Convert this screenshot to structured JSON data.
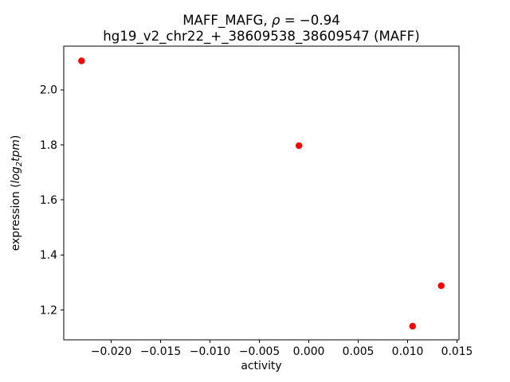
{
  "figure": {
    "background": "#ffffff"
  },
  "chart_data": {
    "type": "scatter",
    "title": {
      "line1_prefix": "MAFF_MAFG, ",
      "line1_rho": "ρ",
      "line1_suffix": " = −0.94",
      "line2": "hg19_v2_chr22_+_38609538_38609547 (MAFF)"
    },
    "xlabel": "activity",
    "ylabel": {
      "prefix": "expression (",
      "italic_word": "log",
      "subscript": "2",
      "italic_word2": "tpm",
      "suffix": ")"
    },
    "series": [
      {
        "name": "expression-vs-activity",
        "marker": "circle",
        "color": "#ff0000",
        "points": [
          {
            "x": -0.023,
            "y": 2.105
          },
          {
            "x": -0.001,
            "y": 1.797
          },
          {
            "x": 0.0105,
            "y": 1.141
          },
          {
            "x": 0.0134,
            "y": 1.288
          }
        ]
      }
    ],
    "xlim": [
      -0.0248,
      0.0152
    ],
    "ylim": [
      1.0915,
      2.1585
    ],
    "xticks": [
      -0.02,
      -0.015,
      -0.01,
      -0.005,
      0.0,
      0.005,
      0.01,
      0.015
    ],
    "xtick_labels": [
      "−0.020",
      "−0.015",
      "−0.010",
      "−0.005",
      "0.000",
      "0.005",
      "0.010",
      "0.015"
    ],
    "yticks": [
      1.2,
      1.4,
      1.6,
      1.8,
      2.0
    ],
    "ytick_labels": [
      "1.2",
      "1.4",
      "1.6",
      "1.8",
      "2.0"
    ],
    "grid": false,
    "legend": null,
    "axes_color": "#000000"
  }
}
